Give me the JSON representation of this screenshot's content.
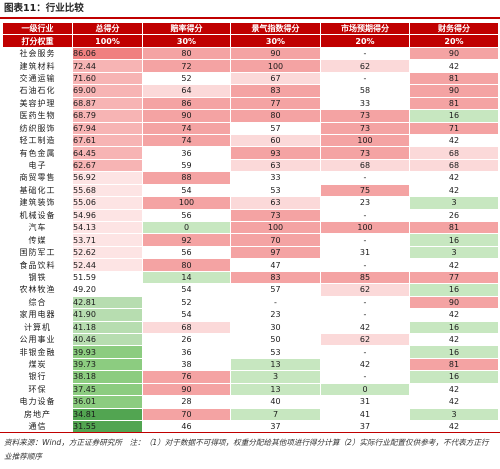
{
  "figure_title": "图表11：行业比较",
  "header": {
    "industry": "一级行业",
    "total": "总得分",
    "valuation": "赔率得分",
    "sentiment": "景气指数得分",
    "expectation": "市场预期得分",
    "financial": "财务得分"
  },
  "weights_row": {
    "label": "打分权重",
    "total": "100%",
    "valuation": "30%",
    "sentiment": "30%",
    "expectation": "20%",
    "financial": "20%"
  },
  "rows": [
    {
      "name": "社会服务",
      "total": "86.06",
      "valuation": "80",
      "sentiment": "90",
      "expectation": "-",
      "financial": "90"
    },
    {
      "name": "建筑材料",
      "total": "72.44",
      "valuation": "72",
      "sentiment": "100",
      "expectation": "62",
      "financial": "42"
    },
    {
      "name": "交通运输",
      "total": "71.60",
      "valuation": "52",
      "sentiment": "67",
      "expectation": "-",
      "financial": "81"
    },
    {
      "name": "石油石化",
      "total": "69.00",
      "valuation": "64",
      "sentiment": "83",
      "expectation": "58",
      "financial": "90"
    },
    {
      "name": "美容护理",
      "total": "68.87",
      "valuation": "86",
      "sentiment": "77",
      "expectation": "33",
      "financial": "81"
    },
    {
      "name": "医药生物",
      "total": "68.79",
      "valuation": "90",
      "sentiment": "80",
      "expectation": "73",
      "financial": "16"
    },
    {
      "name": "纺织服饰",
      "total": "67.94",
      "valuation": "74",
      "sentiment": "57",
      "expectation": "73",
      "financial": "71"
    },
    {
      "name": "轻工制造",
      "total": "67.61",
      "valuation": "74",
      "sentiment": "60",
      "expectation": "100",
      "financial": "42"
    },
    {
      "name": "有色金属",
      "total": "64.45",
      "valuation": "36",
      "sentiment": "93",
      "expectation": "73",
      "financial": "68"
    },
    {
      "name": "电子",
      "total": "62.67",
      "valuation": "59",
      "sentiment": "63",
      "expectation": "68",
      "financial": "68"
    },
    {
      "name": "商贸零售",
      "total": "56.92",
      "valuation": "88",
      "sentiment": "33",
      "expectation": "-",
      "financial": "42"
    },
    {
      "name": "基础化工",
      "total": "55.68",
      "valuation": "54",
      "sentiment": "53",
      "expectation": "75",
      "financial": "42"
    },
    {
      "name": "建筑装饰",
      "total": "55.06",
      "valuation": "100",
      "sentiment": "63",
      "expectation": "23",
      "financial": "3"
    },
    {
      "name": "机械设备",
      "total": "54.96",
      "valuation": "56",
      "sentiment": "73",
      "expectation": "-",
      "financial": "26"
    },
    {
      "name": "汽车",
      "total": "54.13",
      "valuation": "0",
      "sentiment": "100",
      "expectation": "100",
      "financial": "81"
    },
    {
      "name": "传媒",
      "total": "53.71",
      "valuation": "92",
      "sentiment": "70",
      "expectation": "-",
      "financial": "16"
    },
    {
      "name": "国防军工",
      "total": "52.62",
      "valuation": "56",
      "sentiment": "97",
      "expectation": "31",
      "financial": "3"
    },
    {
      "name": "食品饮料",
      "total": "52.44",
      "valuation": "80",
      "sentiment": "47",
      "expectation": "-",
      "financial": "42"
    },
    {
      "name": "钢铁",
      "total": "51.59",
      "valuation": "14",
      "sentiment": "83",
      "expectation": "85",
      "financial": "77"
    },
    {
      "name": "农林牧渔",
      "total": "49.20",
      "valuation": "54",
      "sentiment": "57",
      "expectation": "62",
      "financial": "16"
    },
    {
      "name": "综合",
      "total": "42.81",
      "valuation": "52",
      "sentiment": "-",
      "expectation": "-",
      "financial": "90"
    },
    {
      "name": "家用电器",
      "total": "41.90",
      "valuation": "54",
      "sentiment": "23",
      "expectation": "-",
      "financial": "42"
    },
    {
      "name": "计算机",
      "total": "41.18",
      "valuation": "68",
      "sentiment": "30",
      "expectation": "42",
      "financial": "16"
    },
    {
      "name": "公用事业",
      "total": "40.46",
      "valuation": "26",
      "sentiment": "50",
      "expectation": "62",
      "financial": "42"
    },
    {
      "name": "非银金融",
      "total": "39.93",
      "valuation": "36",
      "sentiment": "53",
      "expectation": "-",
      "financial": "16"
    },
    {
      "name": "煤炭",
      "total": "39.73",
      "valuation": "38",
      "sentiment": "13",
      "expectation": "42",
      "financial": "81"
    },
    {
      "name": "银行",
      "total": "38.18",
      "valuation": "76",
      "sentiment": "3",
      "expectation": "-",
      "financial": "16"
    },
    {
      "name": "环保",
      "total": "37.45",
      "valuation": "90",
      "sentiment": "13",
      "expectation": "0",
      "financial": "42"
    },
    {
      "name": "电力设备",
      "total": "36.01",
      "valuation": "28",
      "sentiment": "40",
      "expectation": "31",
      "financial": "42"
    },
    {
      "name": "房地产",
      "total": "34.81",
      "valuation": "70",
      "sentiment": "7",
      "expectation": "41",
      "financial": "3"
    },
    {
      "name": "通信",
      "total": "31.55",
      "valuation": "46",
      "sentiment": "37",
      "expectation": "37",
      "financial": "42"
    }
  ],
  "note": "资料来源：Wind，方正证券研究所　注：（1）对于数据不可得项，权重分配给其他项进行得分计算（2）实际行业配置仅供参考，不代表方正行业推荐顺序",
  "colors": {
    "accent": "#c00000",
    "high_red": "#f4a3a3",
    "light_red": "#fbd9d9",
    "light_green": "#c7e7c0",
    "mid_green": "#8ccc80",
    "dark_green": "#52a551"
  }
}
